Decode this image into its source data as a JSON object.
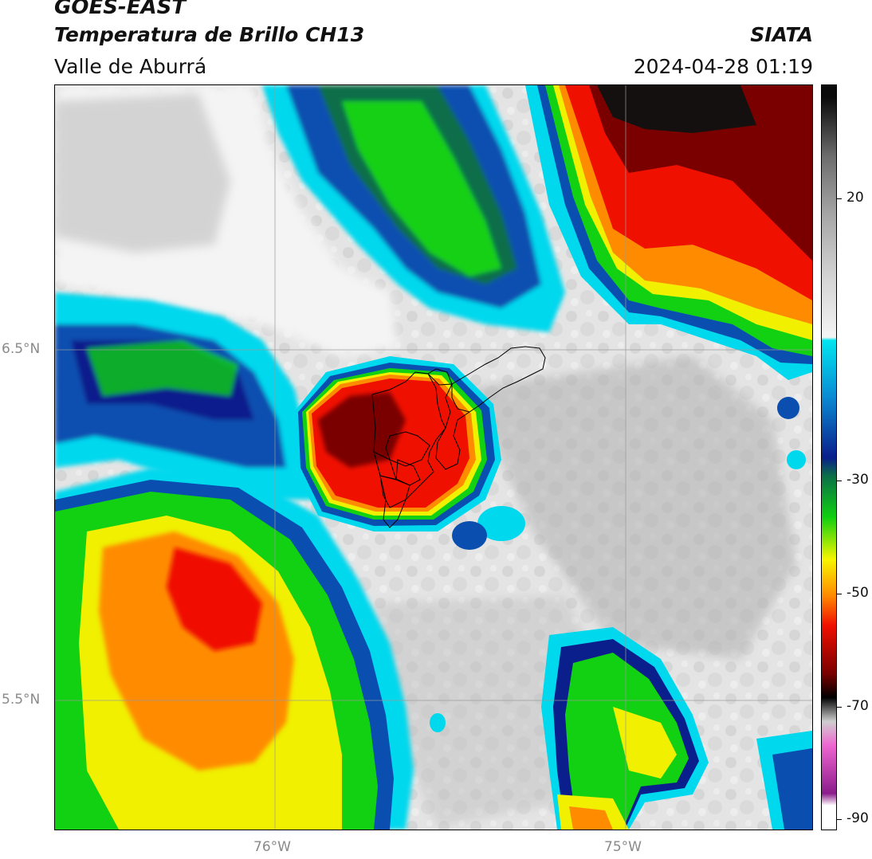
{
  "header": {
    "satellite": "GOES-EAST",
    "product": "Temperatura de Brillo CH13",
    "region": "Valle de Aburrá",
    "institution": "SIATA",
    "datetime": "2024-04-28 01:19"
  },
  "axes": {
    "lat_ticks": [
      "6.5°N",
      "5.5°N"
    ],
    "lon_ticks": [
      "76°W",
      "75°W"
    ]
  },
  "colorbar": {
    "ticks": [
      "20",
      "-30",
      "-50",
      "-70",
      "-90"
    ],
    "stops": [
      {
        "value": 30,
        "color": "#0a0a0a"
      },
      {
        "value": 20,
        "color": "#6e6e6e"
      },
      {
        "value": 10,
        "color": "#a8a8a8"
      },
      {
        "value": 0,
        "color": "#d4d4d4"
      },
      {
        "value": -10,
        "color": "#f4f4f4"
      },
      {
        "value": -10.5,
        "color": "#00e5f0"
      },
      {
        "value": -20,
        "color": "#0a8ad2"
      },
      {
        "value": -30,
        "color": "#0a1e8c"
      },
      {
        "value": -33,
        "color": "#0b6e4a"
      },
      {
        "value": -40,
        "color": "#10d010"
      },
      {
        "value": -47,
        "color": "#f6f600"
      },
      {
        "value": -53,
        "color": "#ff8a00"
      },
      {
        "value": -58,
        "color": "#f01000"
      },
      {
        "value": -66,
        "color": "#7a0000"
      },
      {
        "value": -70,
        "color": "#000000"
      },
      {
        "value": -74,
        "color": "#cfcfcf"
      },
      {
        "value": -78,
        "color": "#ee66d0"
      },
      {
        "value": -86,
        "color": "#8c1c8c"
      },
      {
        "value": -88,
        "color": "#ffffff"
      }
    ]
  },
  "colors": {
    "clear": "#e8e8e8",
    "cyan": "#00d8ee",
    "blue": "#0a4fb0",
    "navy": "#0a1e8c",
    "green": "#12d012",
    "yellow": "#f0f000",
    "orange": "#ff8c00",
    "red": "#f01000",
    "darkred": "#7a0000",
    "black": "#151010"
  }
}
